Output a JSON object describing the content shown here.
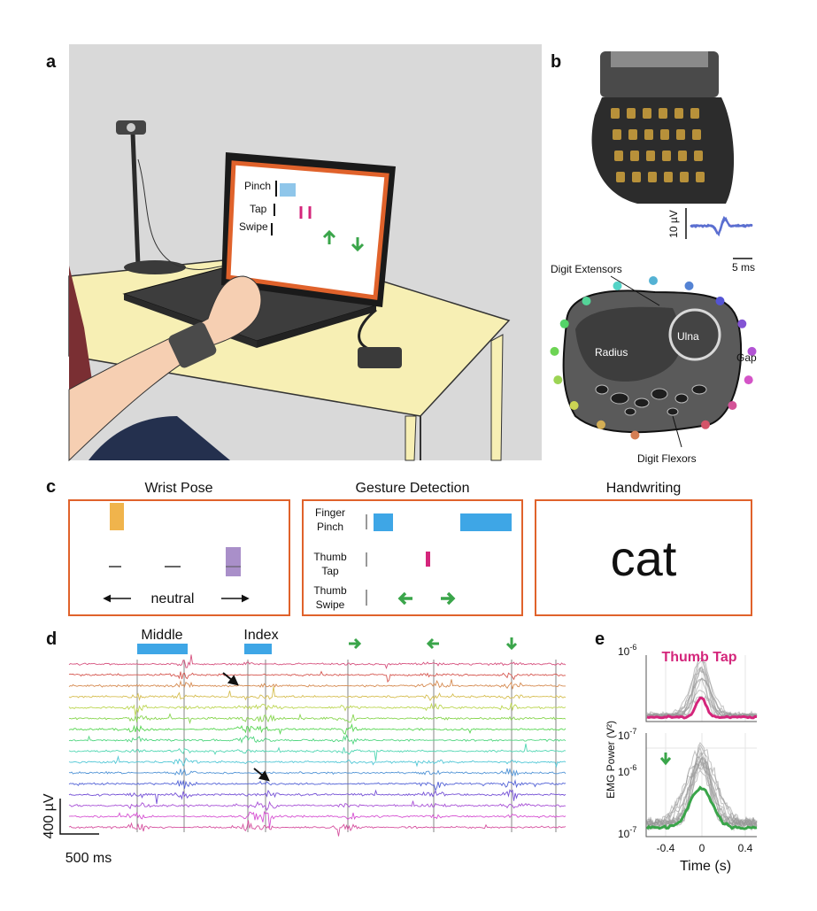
{
  "panel_a": {
    "label": "a",
    "screen_rows": [
      "Pinch",
      "Tap",
      "Swipe"
    ]
  },
  "panel_b": {
    "label": "b",
    "scale_amplitude": "10 µV",
    "scale_time": "5 ms",
    "anatomy": {
      "extensors": "Digit Extensors",
      "ulna": "Ulna",
      "radius": "Radius",
      "gap": "Gap",
      "flexors": "Digit Flexors"
    }
  },
  "panel_c": {
    "label": "c",
    "wrist_pose": {
      "title": "Wrist Pose",
      "caption": "neutral"
    },
    "gesture_detection": {
      "title": "Gesture Detection",
      "rows": [
        [
          "Finger",
          "Pinch"
        ],
        [
          "Thumb",
          "Tap"
        ],
        [
          "Thumb",
          "Swipe"
        ]
      ]
    },
    "handwriting": {
      "title": "Handwriting",
      "text": "cat"
    }
  },
  "panel_d": {
    "label": "d",
    "events": [
      "Middle",
      "Index"
    ],
    "scale_amplitude": "400 µV",
    "scale_time": "500 ms"
  },
  "panel_e": {
    "label": "e",
    "title": "Thumb Tap",
    "y_label": "EMG Power (V²)",
    "x_label": "Time (s)",
    "x_ticks": [
      "-0.4",
      "0",
      "0.4"
    ],
    "y_ticks": [
      {
        "base": "10",
        "exp": "-6"
      },
      {
        "base": "10",
        "exp": "-7"
      }
    ]
  }
}
